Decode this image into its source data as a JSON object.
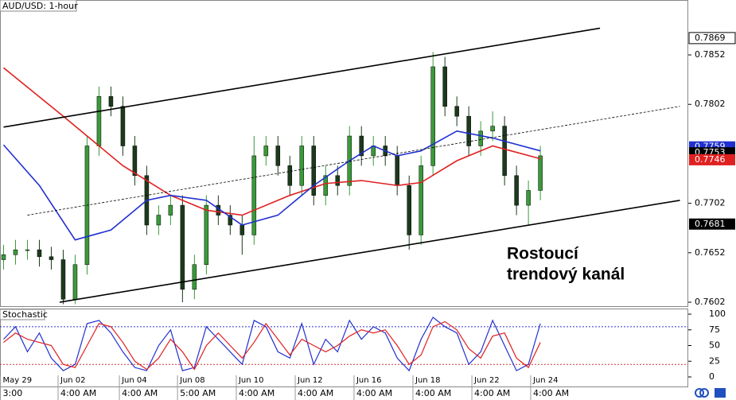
{
  "chart_data": {
    "type": "candlestick",
    "title": "AUD/USD: 1-hour",
    "annotation": [
      "Rostoucí",
      "trendový kanál"
    ],
    "xlim": [
      -0.3,
      57.4
    ],
    "xticks": [
      {
        "value": -0.3,
        "label": "May 29",
        "time": "3:00"
      },
      {
        "value": 4.57,
        "label": "Jun 02",
        "time": "4:00 AM"
      },
      {
        "value": 9.71,
        "label": "Jun 04",
        "time": "4:00 AM"
      },
      {
        "value": 14.58,
        "label": "Jun 08",
        "time": "5:00 AM"
      },
      {
        "value": 19.51,
        "label": "Jun 10",
        "time": "4:00 AM"
      },
      {
        "value": 24.45,
        "label": "Jun 12",
        "time": "4:00 AM"
      },
      {
        "value": 29.38,
        "label": "Jun 16",
        "time": "4:00 AM"
      },
      {
        "value": 34.32,
        "label": "Jun 18",
        "time": "4:00 AM"
      },
      {
        "value": 39.26,
        "label": "Jun 22",
        "time": "4:00 AM"
      },
      {
        "value": 44.19,
        "label": "Jun 24",
        "time": "4:00 AM"
      }
    ],
    "ylim": [
      0.7598,
      0.79075
    ],
    "yticks": [
      0.7602,
      0.7652,
      0.7702,
      0.7802,
      0.7852
    ],
    "up_color": "#3a9a3a",
    "down_color": "#1c3a1c",
    "x": [
      0,
      1,
      2,
      3,
      4,
      5,
      6,
      7,
      8,
      9,
      10,
      11,
      12,
      13,
      14,
      15,
      16,
      17,
      18,
      19,
      20,
      21,
      22,
      23,
      24,
      25,
      26,
      27,
      28,
      29,
      30,
      31,
      32,
      33,
      34,
      35,
      36,
      37,
      38,
      39,
      40,
      41,
      42,
      43,
      44,
      45
    ],
    "open": [
      0.7645,
      0.765,
      0.7655,
      0.7655,
      0.7648,
      0.7645,
      0.7605,
      0.764,
      0.776,
      0.781,
      0.78,
      0.776,
      0.773,
      0.768,
      0.769,
      0.77,
      0.7615,
      0.764,
      0.77,
      0.769,
      0.768,
      0.767,
      0.775,
      0.776,
      0.774,
      0.772,
      0.776,
      0.771,
      0.773,
      0.772,
      0.777,
      0.775,
      0.776,
      0.775,
      0.772,
      0.767,
      0.774,
      0.784,
      0.78,
      0.779,
      0.776,
      0.7775,
      0.778,
      0.773,
      0.77,
      0.7715
    ],
    "high": [
      0.766,
      0.7665,
      0.7665,
      0.7665,
      0.7658,
      0.7655,
      0.765,
      0.777,
      0.782,
      0.782,
      0.781,
      0.777,
      0.774,
      0.77,
      0.771,
      0.771,
      0.765,
      0.771,
      0.771,
      0.77,
      0.769,
      0.777,
      0.777,
      0.777,
      0.775,
      0.777,
      0.777,
      0.774,
      0.774,
      0.778,
      0.778,
      0.777,
      0.777,
      0.776,
      0.773,
      0.775,
      0.7855,
      0.785,
      0.781,
      0.78,
      0.7785,
      0.7795,
      0.779,
      0.774,
      0.7725,
      0.776
    ],
    "low": [
      0.7635,
      0.764,
      0.7645,
      0.7638,
      0.7635,
      0.76,
      0.76,
      0.763,
      0.775,
      0.779,
      0.775,
      0.772,
      0.767,
      0.767,
      0.768,
      0.7602,
      0.7605,
      0.763,
      0.768,
      0.767,
      0.765,
      0.766,
      0.774,
      0.773,
      0.771,
      0.771,
      0.77,
      0.77,
      0.771,
      0.771,
      0.774,
      0.774,
      0.774,
      0.771,
      0.7655,
      0.766,
      0.773,
      0.779,
      0.778,
      0.775,
      0.775,
      0.7765,
      0.772,
      0.769,
      0.768,
      0.7705
    ],
    "close": [
      0.765,
      0.7655,
      0.7655,
      0.7648,
      0.7645,
      0.7605,
      0.764,
      0.776,
      0.781,
      0.78,
      0.776,
      0.773,
      0.768,
      0.769,
      0.77,
      0.7615,
      0.764,
      0.77,
      0.769,
      0.768,
      0.767,
      0.775,
      0.776,
      0.774,
      0.772,
      0.776,
      0.771,
      0.773,
      0.772,
      0.777,
      0.775,
      0.776,
      0.775,
      0.772,
      0.767,
      0.774,
      0.784,
      0.78,
      0.779,
      0.776,
      0.7775,
      0.778,
      0.773,
      0.77,
      0.7715,
      0.775
    ],
    "lines": [
      {
        "color": "#e02020",
        "x": [
          0,
          5,
          10,
          14,
          17,
          20,
          24,
          27,
          30,
          33,
          35,
          38,
          41,
          45
        ],
        "values": [
          0.7839,
          0.779,
          0.774,
          0.771,
          0.7695,
          0.769,
          0.771,
          0.7722,
          0.7725,
          0.772,
          0.7723,
          0.7745,
          0.776,
          0.7747
        ]
      },
      {
        "color": "#2030d0",
        "x": [
          0,
          3,
          6,
          9,
          12,
          14,
          17,
          20,
          23,
          26,
          29,
          31,
          33,
          35,
          38,
          41,
          45
        ],
        "values": [
          0.7761,
          0.772,
          0.7665,
          0.7675,
          0.7705,
          0.771,
          0.7705,
          0.768,
          0.769,
          0.772,
          0.7745,
          0.776,
          0.775,
          0.7755,
          0.7775,
          0.7768,
          0.7755
        ]
      },
      {
        "color": "#000000",
        "x": [
          0,
          50
        ],
        "values": [
          0.7779,
          0.7879
        ]
      },
      {
        "color": "#000000",
        "x": [
          4.7,
          56.7
        ],
        "values": [
          0.7602,
          0.7705
        ]
      },
      {
        "color": "#000000",
        "dashed": true,
        "x": [
          2,
          56.7
        ],
        "values": [
          0.769,
          0.78
        ]
      }
    ],
    "price_tags": [
      {
        "value": 0.7869,
        "color": "#000000",
        "boxed": false
      },
      {
        "value": 0.7759,
        "color": "#2030d0",
        "boxed": true
      },
      {
        "value": 0.7753,
        "color": "#000000",
        "boxed": true
      },
      {
        "value": 0.7746,
        "color": "#e02020",
        "boxed": true
      },
      {
        "value": 0.7681,
        "color": "#000000",
        "boxed": true
      }
    ],
    "stochastic": {
      "title": "Stochastic",
      "ylim": [
        -15.2,
        108.9
      ],
      "yticks": [
        0,
        25,
        50,
        75,
        100
      ],
      "levels": [
        {
          "value": 80,
          "color": "#3333cc"
        },
        {
          "value": 20,
          "color": "#cc3333"
        }
      ],
      "series": [
        {
          "color": "#2030d0",
          "values": [
            60,
            80,
            40,
            70,
            30,
            10,
            20,
            85,
            90,
            70,
            40,
            15,
            10,
            50,
            75,
            10,
            15,
            80,
            60,
            40,
            20,
            90,
            80,
            40,
            30,
            85,
            20,
            60,
            40,
            90,
            60,
            80,
            70,
            30,
            10,
            60,
            95,
            80,
            70,
            20,
            40,
            90,
            50,
            10,
            20,
            85
          ]
        },
        {
          "color": "#e02020",
          "values": [
            55,
            70,
            60,
            55,
            50,
            20,
            15,
            50,
            85,
            80,
            55,
            25,
            12,
            30,
            60,
            40,
            12,
            50,
            70,
            50,
            30,
            55,
            85,
            60,
            35,
            60,
            50,
            40,
            50,
            65,
            75,
            70,
            75,
            50,
            20,
            35,
            80,
            88,
            75,
            45,
            30,
            65,
            70,
            30,
            15,
            55
          ]
        }
      ]
    }
  }
}
